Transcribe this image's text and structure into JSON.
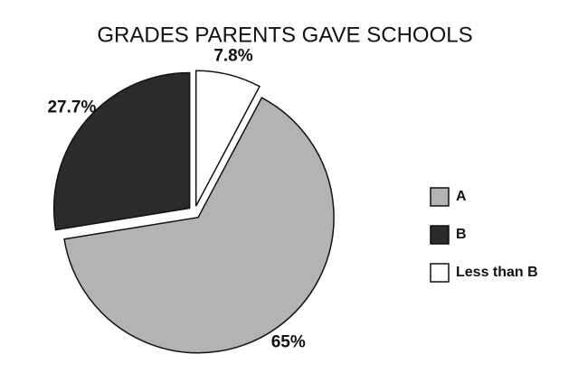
{
  "chart_data": {
    "type": "pie",
    "title": "GRADES PARENTS GAVE SCHOOLS",
    "categories": [
      "Less than B",
      "A",
      "B"
    ],
    "values": [
      7.8,
      65,
      27.7
    ],
    "value_labels": [
      "7.8%",
      "65%",
      "27.7%"
    ],
    "colors": [
      "#ffffff",
      "#b3b3b3",
      "#2b2b2b"
    ],
    "legend_order": [
      1,
      2,
      0
    ]
  }
}
